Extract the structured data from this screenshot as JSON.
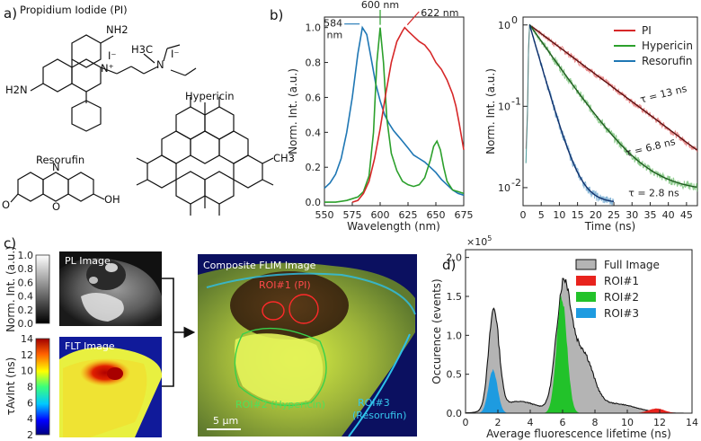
{
  "panels": {
    "a": "a)",
    "b": "b)",
    "c": "c)",
    "d": "d)"
  },
  "molecules": {
    "pi": "Propidium Iodide (PI)",
    "hypericin": "Hypericin",
    "resorufin": "Resorufin",
    "atoms": {
      "nh2_top": "NH2",
      "h2n_left": "H2N",
      "iodide": "I⁻",
      "iodide2": "I⁻",
      "nplus": "N⁺",
      "n_amine": "N",
      "h3c": "H3C",
      "o_left": "O",
      "n_mid": "N",
      "o_bridge": "O",
      "oh": "OH",
      "ch3": "CH3"
    }
  },
  "colors": {
    "pi": "#d62728",
    "hypericin": "#2ca02c",
    "resorufin": "#1f77b4",
    "resorufin_hist": "#29a3e0",
    "full": "#b4b4b4",
    "roi1": "#e8231d",
    "roi2": "#22c22a",
    "roi3": "#1e9be0"
  },
  "chart_data": [
    {
      "type": "line",
      "title": "",
      "xlabel": "Wavelength (nm)",
      "ylabel": "Norm. Int. (a.u.)",
      "xlim": [
        550,
        675
      ],
      "ylim": [
        -0.02,
        1.06
      ],
      "xticks": [
        "550",
        "575",
        "600",
        "625",
        "650",
        "675"
      ],
      "yticks": [
        "0.0",
        "0.2",
        "0.4",
        "0.6",
        "0.8",
        "1.0"
      ],
      "series": [
        {
          "name": "Resorufin",
          "color": "#1f77b4",
          "x": [
            550,
            555,
            560,
            565,
            570,
            575,
            580,
            584,
            588,
            592,
            596,
            600,
            604,
            608,
            612,
            616,
            620,
            625,
            630,
            635,
            640,
            645,
            650,
            655,
            660,
            665,
            670,
            675
          ],
          "y": [
            0.08,
            0.11,
            0.16,
            0.25,
            0.4,
            0.6,
            0.85,
            1.0,
            0.96,
            0.82,
            0.68,
            0.58,
            0.5,
            0.45,
            0.41,
            0.38,
            0.35,
            0.31,
            0.27,
            0.25,
            0.23,
            0.2,
            0.17,
            0.13,
            0.1,
            0.07,
            0.05,
            0.04
          ]
        },
        {
          "name": "Hypericin",
          "color": "#2ca02c",
          "x": [
            550,
            560,
            570,
            580,
            585,
            590,
            594,
            597,
            600,
            603,
            606,
            610,
            615,
            620,
            625,
            630,
            635,
            640,
            645,
            648,
            651,
            654,
            657,
            660,
            665,
            670,
            675
          ],
          "y": [
            0.0,
            0.0,
            0.01,
            0.03,
            0.06,
            0.15,
            0.4,
            0.8,
            1.0,
            0.8,
            0.48,
            0.28,
            0.18,
            0.12,
            0.1,
            0.09,
            0.1,
            0.14,
            0.24,
            0.32,
            0.35,
            0.3,
            0.2,
            0.12,
            0.07,
            0.06,
            0.05
          ]
        },
        {
          "name": "PI",
          "color": "#d62728",
          "x": [
            575,
            580,
            585,
            590,
            595,
            600,
            605,
            610,
            615,
            620,
            622,
            625,
            630,
            635,
            640,
            645,
            650,
            655,
            660,
            665,
            668,
            671,
            675
          ],
          "y": [
            0.0,
            0.01,
            0.05,
            0.12,
            0.25,
            0.42,
            0.62,
            0.8,
            0.92,
            0.98,
            1.0,
            0.98,
            0.95,
            0.92,
            0.9,
            0.86,
            0.8,
            0.76,
            0.7,
            0.62,
            0.55,
            0.45,
            0.3
          ]
        }
      ],
      "annotations": [
        {
          "text": "584",
          "text2": "nm",
          "x": 584,
          "color": "#1f77b4"
        },
        {
          "text": "600 nm",
          "x": 600,
          "color": "#2ca02c"
        },
        {
          "text": "622 nm",
          "x": 622,
          "color": "#d62728"
        }
      ]
    },
    {
      "type": "line",
      "title": "",
      "xlabel": "Time (ns)",
      "ylabel": "Norm. Int. (a.u.)",
      "yscale": "log",
      "xlim": [
        0,
        48
      ],
      "ylim": [
        0.006,
        1.25
      ],
      "xticks": [
        "0",
        "5",
        "10",
        "15",
        "20",
        "25",
        "30",
        "35",
        "40",
        "45"
      ],
      "yticks": [
        {
          "label": "10",
          "exp": "0",
          "value": 1
        },
        {
          "label": "10",
          "exp": "-1",
          "value": 0.1
        },
        {
          "label": "10",
          "exp": "-2",
          "value": 0.01
        }
      ],
      "legend": [
        "PI",
        "Hypericin",
        "Resorufin"
      ],
      "series": [
        {
          "name": "PI",
          "color": "#d62728",
          "tau": 13,
          "t_end": 48,
          "floor": 0,
          "noise": 0.09
        },
        {
          "name": "Hypericin",
          "color": "#2ca02c",
          "tau": 6.8,
          "t_end": 48,
          "floor": 0.009,
          "noise": 0.12
        },
        {
          "name": "Resorufin",
          "color": "#1f77b4",
          "tau": 2.8,
          "t_end": 25,
          "floor": 0.0065,
          "noise": 0.13
        }
      ],
      "annotations": [
        {
          "text": "τ = 13 ns",
          "color": "#d62728"
        },
        {
          "text": "τ = 6.8 ns",
          "color": "#2ca02c"
        },
        {
          "text": "τ = 2.8 ns",
          "color": "#1f77b4"
        }
      ]
    },
    {
      "type": "area",
      "title": "",
      "xlabel": "Average fluorescence lifetime (ns)",
      "ylabel": "Occurence (events)",
      "multiplier": "×10",
      "multiplier_exp": "5",
      "xlim": [
        0,
        14
      ],
      "ylim": [
        0,
        2.1
      ],
      "xticks": [
        "0",
        "2",
        "4",
        "6",
        "8",
        "10",
        "12",
        "14"
      ],
      "yticks": [
        "0.0",
        "0.5",
        "1.0",
        "1.5",
        "2.0"
      ],
      "legend": [
        "Full Image",
        "ROI#1",
        "ROI#2",
        "ROI#3"
      ],
      "series": [
        {
          "name": "Full Image",
          "peaks": [
            {
              "mu": 1.75,
              "sigma": 0.32,
              "amp": 1.28
            },
            {
              "mu": 6.05,
              "sigma": 0.45,
              "amp": 1.55
            },
            {
              "mu": 7.2,
              "sigma": 0.65,
              "amp": 0.75
            },
            {
              "mu": 3.3,
              "sigma": 1.2,
              "amp": 0.15
            },
            {
              "mu": 9.2,
              "sigma": 1.3,
              "amp": 0.12
            }
          ]
        },
        {
          "name": "ROI#1",
          "peaks": [
            {
              "mu": 11.8,
              "sigma": 0.5,
              "amp": 0.06
            }
          ]
        },
        {
          "name": "ROI#2",
          "peaks": [
            {
              "mu": 5.95,
              "sigma": 0.32,
              "amp": 1.48
            }
          ]
        },
        {
          "name": "ROI#3",
          "peaks": [
            {
              "mu": 1.7,
              "sigma": 0.28,
              "amp": 0.55
            }
          ]
        }
      ]
    }
  ],
  "images": {
    "pl_title": "PL Image",
    "flt_title": "FLT Image",
    "composite_title": "Composite FLIM Image",
    "roi1": "ROI#1 (PI)",
    "roi2": "ROI#2 (Hypericin)",
    "roi3a": "ROI#3",
    "roi3b": "(Resorufin)",
    "scalebar": "5 μm",
    "pl_colorbar": {
      "label": "Norm. Int. (a.u.)",
      "ticks": [
        "0.0",
        "0.2",
        "0.4",
        "0.6",
        "0.8",
        "1.0"
      ]
    },
    "flt_colorbar": {
      "label": "τAvInt (ns)",
      "ticks": [
        "2",
        "4",
        "6",
        "8",
        "10",
        "12",
        "14"
      ]
    }
  }
}
